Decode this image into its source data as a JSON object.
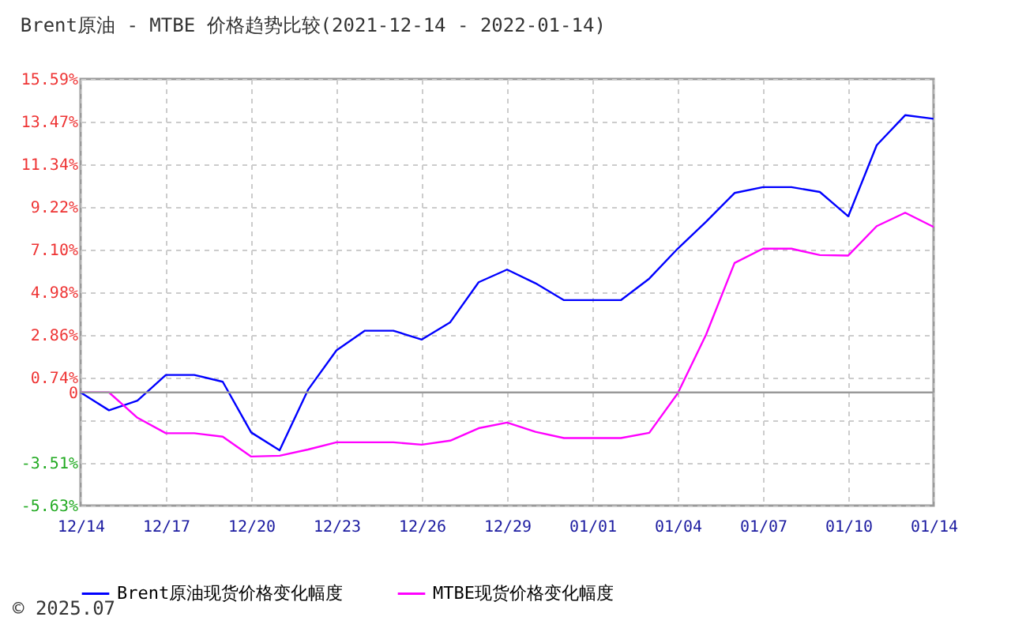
{
  "chart_data": {
    "type": "line",
    "title": "Brent原油 - MTBE 价格趋势比较(2021-12-14 - 2022-01-14)",
    "categories": [
      "12/14",
      null,
      null,
      "12/17",
      null,
      null,
      "12/20",
      null,
      null,
      "12/23",
      null,
      null,
      "12/26",
      null,
      null,
      "12/29",
      null,
      null,
      "01/01",
      null,
      null,
      "01/04",
      null,
      null,
      "01/07",
      null,
      null,
      "01/10",
      null,
      null,
      "01/14"
    ],
    "series": [
      {
        "name": "Brent原油现货价格变化幅度",
        "color": "#0000ff",
        "values": [
          0.0,
          -0.89,
          -0.41,
          0.87,
          0.87,
          0.53,
          -1.99,
          -2.88,
          0.13,
          2.09,
          3.07,
          3.07,
          2.63,
          3.49,
          5.48,
          6.11,
          5.43,
          4.59,
          4.59,
          4.59,
          5.66,
          7.15,
          8.49,
          9.92,
          10.21,
          10.21,
          9.97,
          8.76,
          12.3,
          13.79,
          13.61
        ]
      },
      {
        "name": "MTBE现货价格变化幅度",
        "color": "#ff00ff",
        "values": [
          0.0,
          0.0,
          -1.26,
          -2.03,
          -2.03,
          -2.2,
          -3.19,
          -3.15,
          -2.84,
          -2.48,
          -2.48,
          -2.48,
          -2.6,
          -2.4,
          -1.78,
          -1.5,
          -1.96,
          -2.27,
          -2.27,
          -2.27,
          -2.01,
          -0.05,
          2.88,
          6.44,
          7.15,
          7.15,
          6.83,
          6.81,
          8.27,
          8.94,
          8.23
        ]
      }
    ],
    "ylim": [
      -5.63,
      15.59
    ],
    "yticks": [
      {
        "value": -5.63,
        "label": "-5.63%"
      },
      {
        "value": -3.51,
        "label": "-3.51%"
      },
      {
        "value": -1.38,
        "label": null
      },
      0,
      {
        "value": 0.74,
        "label": "0.74%"
      },
      {
        "value": 2.86,
        "label": "2.86%"
      },
      {
        "value": 4.98,
        "label": "4.98%"
      },
      {
        "value": 7.1,
        "label": "7.10%"
      },
      {
        "value": 9.22,
        "label": "9.22%"
      },
      {
        "value": 11.34,
        "label": "11.34%"
      },
      {
        "value": 13.47,
        "label": "13.47%"
      },
      {
        "value": 15.59,
        "label": "15.59%"
      }
    ],
    "ref_lines": [
      {
        "axis": "y",
        "value": 0,
        "color": "#999999",
        "line_style": "solid"
      }
    ],
    "grid": true,
    "legend": "bottom",
    "line_style": "solid",
    "annotations": [
      "© 2025.07"
    ]
  }
}
